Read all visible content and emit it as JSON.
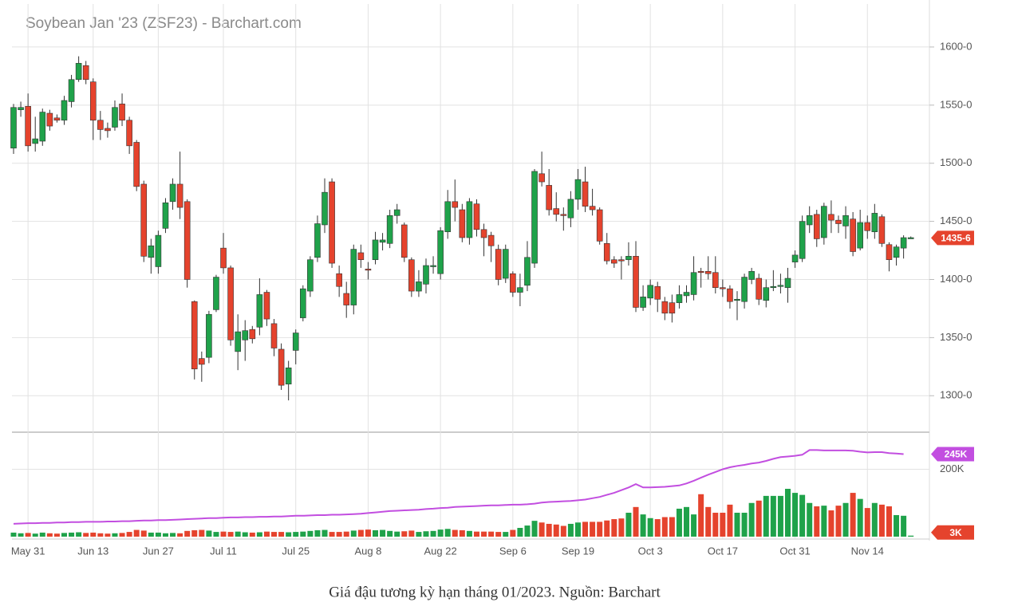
{
  "chart_data": {
    "type": "candlestick",
    "title": "Soybean Jan '23 (ZSF23) - Barchart.com",
    "caption": "Giá đậu tương kỳ hạn tháng 01/2023. Nguồn: Barchart",
    "categories": [
      null,
      null,
      "May 31",
      null,
      null,
      null,
      null,
      null,
      null,
      null,
      null,
      "Jun 13",
      null,
      null,
      null,
      null,
      null,
      null,
      null,
      null,
      "Jun 27",
      null,
      null,
      null,
      null,
      null,
      null,
      null,
      null,
      "Jul 11",
      null,
      null,
      null,
      null,
      null,
      null,
      null,
      null,
      null,
      "Jul 25",
      null,
      null,
      null,
      null,
      null,
      null,
      null,
      null,
      null,
      "Aug 8",
      null,
      null,
      null,
      null,
      null,
      null,
      null,
      null,
      null,
      "Aug 22",
      null,
      null,
      null,
      null,
      null,
      null,
      null,
      null,
      null,
      "Sep 6",
      null,
      null,
      null,
      null,
      null,
      null,
      null,
      null,
      "Sep 19",
      null,
      null,
      null,
      null,
      null,
      null,
      null,
      null,
      null,
      "Oct 3",
      null,
      null,
      null,
      null,
      null,
      null,
      null,
      null,
      null,
      "Oct 17",
      null,
      null,
      null,
      null,
      null,
      null,
      null,
      null,
      null,
      "Oct 31",
      null,
      null,
      null,
      null,
      null,
      null,
      null,
      null,
      null,
      "Nov 14",
      null,
      null,
      null,
      null,
      null,
      null
    ],
    "open": [
      1513,
      1546,
      1549,
      1517,
      1519,
      1543,
      1539,
      1537,
      1553,
      1572,
      1584,
      1570,
      1537,
      1530,
      1531,
      1551,
      1537,
      1518,
      1482,
      1419,
      1411,
      1444,
      1467,
      1482,
      1467,
      1381,
      1332,
      1333,
      1374,
      1427,
      1410,
      1338,
      1348,
      1357,
      1359,
      1389,
      1362,
      1340,
      1310,
      1339,
      1367,
      1390,
      1419,
      1447,
      1484,
      1405,
      1388,
      1378,
      1423,
      1409,
      1417,
      1432,
      1431,
      1455,
      1447,
      1417,
      1390,
      1396,
      1411,
      1405,
      1441,
      1467,
      1460,
      1436,
      1465,
      1443,
      1438,
      1426,
      1401,
      1405,
      1389,
      1395,
      1414,
      1491,
      1481,
      1461,
      1456,
      1453,
      1469,
      1484,
      1463,
      1460,
      1431,
      1417,
      1417,
      1417,
      1420,
      1376,
      1384,
      1394,
      1381,
      1380,
      1380,
      1386,
      1387,
      1407,
      1407,
      1406,
      1393,
      1392,
      1382,
      1381,
      1400,
      1401,
      1382,
      1393,
      1394,
      1393,
      1415,
      1418,
      1447,
      1456,
      1436,
      1456,
      1451,
      1446,
      1452,
      1427,
      1449,
      1441,
      1454,
      1430,
      1419,
      1427,
      1436
    ],
    "high": [
      1551,
      1553,
      1560,
      1540,
      1547,
      1546,
      1542,
      1558,
      1576,
      1592,
      1588,
      1573,
      1545,
      1535,
      1554,
      1560,
      1540,
      1520,
      1485,
      1435,
      1442,
      1470,
      1487,
      1510,
      1469,
      1382,
      1338,
      1373,
      1404,
      1440,
      1412,
      1370,
      1365,
      1360,
      1401,
      1391,
      1366,
      1345,
      1330,
      1357,
      1395,
      1420,
      1455,
      1487,
      1487,
      1412,
      1398,
      1430,
      1430,
      1415,
      1441,
      1440,
      1460,
      1465,
      1449,
      1419,
      1408,
      1418,
      1420,
      1445,
      1477,
      1486,
      1465,
      1470,
      1469,
      1448,
      1441,
      1430,
      1430,
      1407,
      1405,
      1433,
      1495,
      1510,
      1495,
      1475,
      1462,
      1476,
      1495,
      1497,
      1478,
      1462,
      1440,
      1420,
      1420,
      1432,
      1433,
      1395,
      1400,
      1398,
      1385,
      1387,
      1395,
      1395,
      1420,
      1410,
      1420,
      1420,
      1400,
      1395,
      1390,
      1405,
      1410,
      1405,
      1400,
      1408,
      1405,
      1410,
      1425,
      1455,
      1463,
      1460,
      1466,
      1468,
      1455,
      1463,
      1458,
      1460,
      1455,
      1465,
      1456,
      1432,
      1430,
      1438,
      1437
    ],
    "low": [
      1508,
      1540,
      1510,
      1510,
      1515,
      1528,
      1535,
      1533,
      1548,
      1570,
      1568,
      1520,
      1520,
      1522,
      1528,
      1532,
      1508,
      1476,
      1415,
      1405,
      1405,
      1440,
      1460,
      1452,
      1393,
      1314,
      1312,
      1328,
      1372,
      1405,
      1343,
      1322,
      1330,
      1345,
      1352,
      1360,
      1334,
      1305,
      1296,
      1327,
      1364,
      1385,
      1415,
      1440,
      1410,
      1385,
      1367,
      1370,
      1410,
      1400,
      1413,
      1425,
      1427,
      1448,
      1415,
      1385,
      1385,
      1388,
      1405,
      1400,
      1435,
      1450,
      1432,
      1430,
      1437,
      1420,
      1415,
      1395,
      1397,
      1385,
      1377,
      1390,
      1410,
      1480,
      1455,
      1450,
      1442,
      1445,
      1460,
      1458,
      1455,
      1430,
      1413,
      1410,
      1400,
      1412,
      1372,
      1373,
      1378,
      1372,
      1365,
      1363,
      1375,
      1380,
      1382,
      1393,
      1400,
      1388,
      1385,
      1375,
      1365,
      1375,
      1396,
      1378,
      1376,
      1390,
      1388,
      1380,
      1410,
      1415,
      1440,
      1428,
      1430,
      1440,
      1440,
      1435,
      1420,
      1425,
      1435,
      1435,
      1428,
      1407,
      1412,
      1418,
      1435
    ],
    "close": [
      1548,
      1548,
      1515,
      1521,
      1544,
      1532,
      1537,
      1554,
      1572,
      1586,
      1572,
      1537,
      1529,
      1528,
      1548,
      1537,
      1515,
      1480,
      1420,
      1429,
      1438,
      1466,
      1482,
      1462,
      1400,
      1323,
      1327,
      1370,
      1402,
      1410,
      1348,
      1355,
      1356,
      1349,
      1387,
      1366,
      1341,
      1309,
      1324,
      1354,
      1392,
      1417,
      1448,
      1475,
      1414,
      1394,
      1378,
      1426,
      1417,
      1408,
      1434,
      1434,
      1455,
      1460,
      1419,
      1390,
      1398,
      1412,
      1412,
      1442,
      1467,
      1462,
      1436,
      1467,
      1443,
      1436,
      1429,
      1400,
      1426,
      1389,
      1393,
      1419,
      1493,
      1484,
      1460,
      1456,
      1455,
      1469,
      1486,
      1463,
      1460,
      1433,
      1416,
      1414,
      1416,
      1420,
      1376,
      1385,
      1395,
      1383,
      1371,
      1371,
      1387,
      1389,
      1406,
      1406,
      1405,
      1393,
      1392,
      1381,
      1383,
      1402,
      1407,
      1383,
      1393,
      1394,
      1395,
      1401,
      1421,
      1450,
      1455,
      1435,
      1463,
      1451,
      1448,
      1455,
      1424,
      1449,
      1442,
      1457,
      1431,
      1417,
      1428,
      1436,
      1436
    ],
    "volume": [
      12,
      10,
      11,
      9,
      12,
      10,
      9,
      11,
      12,
      13,
      11,
      12,
      10,
      9,
      10,
      11,
      14,
      20,
      18,
      12,
      12,
      10,
      11,
      10,
      17,
      19,
      20,
      18,
      14,
      15,
      14,
      15,
      13,
      12,
      13,
      15,
      14,
      14,
      13,
      14,
      15,
      17,
      19,
      20,
      14,
      14,
      15,
      18,
      20,
      21,
      19,
      20,
      17,
      15,
      16,
      18,
      14,
      16,
      17,
      21,
      23,
      20,
      19,
      17,
      15,
      15,
      15,
      14,
      14,
      20,
      26,
      33,
      47,
      42,
      38,
      36,
      32,
      38,
      42,
      44,
      44,
      44,
      48,
      52,
      54,
      71,
      88,
      66,
      55,
      52,
      58,
      58,
      83,
      88,
      66,
      126,
      88,
      71,
      71,
      95,
      71,
      71,
      100,
      107,
      121,
      121,
      121,
      142,
      130,
      124,
      100,
      90,
      92,
      78,
      92,
      100,
      130,
      112,
      85,
      100,
      95,
      90,
      64,
      62,
      3
    ],
    "open_interest": [
      38,
      39,
      40,
      40,
      41,
      41,
      42,
      42,
      43,
      43,
      44,
      44,
      44,
      45,
      45,
      46,
      46,
      47,
      48,
      48,
      49,
      49,
      50,
      51,
      52,
      53,
      54,
      55,
      55,
      56,
      57,
      57,
      58,
      58,
      59,
      59,
      60,
      60,
      61,
      62,
      62,
      63,
      64,
      64,
      65,
      65,
      66,
      67,
      68,
      70,
      72,
      74,
      76,
      77,
      78,
      79,
      80,
      82,
      83,
      85,
      86,
      88,
      89,
      90,
      91,
      92,
      93,
      93,
      94,
      95,
      95,
      96,
      98,
      101,
      103,
      104,
      105,
      106,
      108,
      110,
      114,
      118,
      124,
      130,
      138,
      146,
      156,
      146,
      146,
      147,
      148,
      150,
      152,
      158,
      166,
      175,
      184,
      192,
      200,
      206,
      210,
      213,
      217,
      220,
      225,
      231,
      236,
      238,
      240,
      243,
      257,
      257,
      256,
      256,
      256,
      256,
      255,
      252,
      250,
      251,
      251,
      248,
      247,
      245,
      null
    ],
    "up_color": "#1fa24a",
    "down_color": "#e5432d",
    "oi_color": "#c24ee0",
    "ylim": [
      1270,
      1637
    ],
    "yticks": [
      {
        "value": 1300,
        "label": "1300-0"
      },
      {
        "value": 1350,
        "label": "1350-0"
      },
      {
        "value": 1400,
        "label": "1400-0"
      },
      {
        "value": 1450,
        "label": "1450-0"
      },
      {
        "value": 1500,
        "label": "1500-0"
      },
      {
        "value": 1550,
        "label": "1550-0"
      },
      {
        "value": 1600,
        "label": "1600-0"
      }
    ],
    "volume_ylim": [
      0,
      303
    ],
    "volume_yticks": [
      {
        "value": 200,
        "label": "200K"
      }
    ],
    "last_price": {
      "value": 1435.75,
      "label": "1435-6"
    },
    "last_open_interest": {
      "value": 245,
      "label": "245K"
    },
    "last_volume": {
      "value": 3,
      "label": "3K"
    },
    "grid": true
  }
}
